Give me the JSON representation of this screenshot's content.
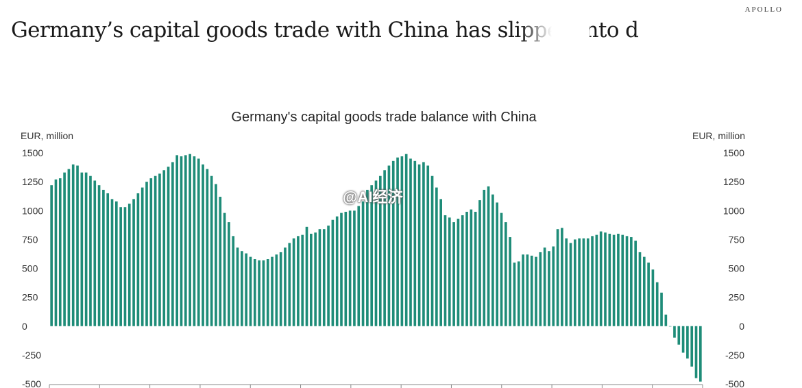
{
  "brand": "APOLLO",
  "headline": "Germany’s capital goods trade with China has slipped into d",
  "watermark": "@AI经济",
  "chart_data": {
    "type": "bar",
    "title": "Germany's capital goods trade balance with China",
    "ylabel_left": "EUR, million",
    "ylabel_right": "EUR, million",
    "ylim": [
      -500,
      1500
    ],
    "yticks": [
      1500,
      1250,
      1000,
      750,
      500,
      250,
      0,
      -250,
      -500
    ],
    "bar_color": "#1e8c78",
    "values": [
      1220,
      1270,
      1280,
      1330,
      1360,
      1400,
      1390,
      1330,
      1330,
      1300,
      1260,
      1220,
      1180,
      1150,
      1100,
      1080,
      1030,
      1030,
      1060,
      1100,
      1150,
      1200,
      1250,
      1280,
      1300,
      1320,
      1350,
      1380,
      1420,
      1480,
      1470,
      1480,
      1490,
      1470,
      1450,
      1400,
      1360,
      1300,
      1230,
      1120,
      980,
      900,
      780,
      680,
      650,
      630,
      600,
      580,
      570,
      570,
      580,
      600,
      620,
      640,
      680,
      720,
      760,
      780,
      790,
      860,
      800,
      810,
      840,
      840,
      870,
      920,
      950,
      980,
      990,
      1000,
      1000,
      1040,
      1080,
      1180,
      1220,
      1260,
      1300,
      1350,
      1390,
      1430,
      1460,
      1470,
      1490,
      1450,
      1430,
      1400,
      1420,
      1390,
      1300,
      1200,
      1100,
      960,
      940,
      900,
      930,
      960,
      990,
      1010,
      990,
      1090,
      1180,
      1210,
      1140,
      1070,
      980,
      900,
      770,
      550,
      560,
      620,
      620,
      610,
      600,
      640,
      680,
      650,
      690,
      840,
      850,
      760,
      720,
      750,
      760,
      760,
      760,
      780,
      790,
      820,
      810,
      800,
      790,
      800,
      790,
      780,
      770,
      740,
      640,
      600,
      550,
      490,
      380,
      290,
      100,
      0,
      -100,
      -160,
      -230,
      -280,
      -350,
      -450,
      -480
    ],
    "x_axis_ticks": 13
  }
}
